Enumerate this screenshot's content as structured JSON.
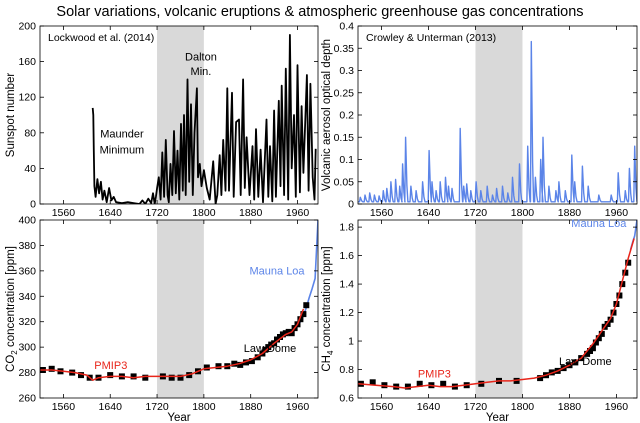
{
  "figure": {
    "title": "Solar variations, volcanic eruptions & atmospheric greenhouse gas concentrations"
  },
  "colors": {
    "sunspot": "#000000",
    "aerosol": "#5b84e8",
    "pmip3": "#e8251a",
    "mauna_loa": "#5b84e8",
    "law_dome_markers": "#000000",
    "shade": "#d9d9d9"
  },
  "chart_data": [
    {
      "id": "sunspots",
      "type": "line",
      "annotation": "Lockwood et al. (2014)",
      "xlabel": "",
      "ylabel": "Sunspot number",
      "xlim": [
        1520,
        1995
      ],
      "ylim": [
        0,
        200
      ],
      "xticks": [
        1560,
        1640,
        1720,
        1800,
        1880,
        1960
      ],
      "yticks": [
        0,
        40,
        80,
        120,
        160,
        200
      ],
      "shaded_period": [
        1720,
        1800
      ],
      "notes": [
        {
          "text": "Maunder",
          "x": 1660,
          "y": 75
        },
        {
          "text": "Minimum",
          "x": 1660,
          "y": 57
        },
        {
          "text": "Dalton",
          "x": 1795,
          "y": 161
        },
        {
          "text": "Min.",
          "x": 1795,
          "y": 145
        }
      ],
      "series": [
        {
          "name": "",
          "x": [
            1610,
            1611,
            1612,
            1613,
            1615,
            1618,
            1621,
            1624,
            1627,
            1630,
            1634,
            1638,
            1642,
            1646,
            1650,
            1660,
            1670,
            1680,
            1690,
            1695,
            1700,
            1705,
            1710,
            1713,
            1716,
            1718,
            1720,
            1723,
            1726,
            1729,
            1732,
            1735,
            1738,
            1740,
            1743,
            1746,
            1749,
            1752,
            1755,
            1758,
            1761,
            1764,
            1766,
            1769,
            1772,
            1775,
            1778,
            1781,
            1784,
            1788,
            1790,
            1793,
            1796,
            1800,
            1805,
            1810,
            1816,
            1820,
            1823,
            1827,
            1830,
            1833,
            1837,
            1840,
            1843,
            1848,
            1851,
            1855,
            1860,
            1863,
            1867,
            1870,
            1873,
            1878,
            1883,
            1886,
            1889,
            1893,
            1897,
            1901,
            1907,
            1910,
            1913,
            1917,
            1920,
            1923,
            1928,
            1931,
            1933,
            1937,
            1940,
            1944,
            1947,
            1950,
            1954,
            1957,
            1960,
            1964,
            1967,
            1970,
            1976,
            1979,
            1982,
            1986,
            1989,
            1991
          ],
          "y": [
            108,
            100,
            60,
            20,
            8,
            28,
            12,
            25,
            5,
            15,
            2,
            18,
            4,
            8,
            2,
            1,
            2,
            1,
            0,
            4,
            0,
            6,
            1,
            12,
            0,
            8,
            18,
            30,
            5,
            58,
            8,
            72,
            10,
            2,
            45,
            10,
            82,
            12,
            60,
            5,
            90,
            15,
            100,
            10,
            140,
            25,
            112,
            10,
            80,
            130,
            30,
            45,
            20,
            38,
            18,
            5,
            48,
            0,
            10,
            55,
            10,
            72,
            15,
            130,
            15,
            125,
            8,
            92,
            95,
            10,
            140,
            18,
            75,
            10,
            65,
            5,
            84,
            8,
            61,
            2,
            95,
            8,
            65,
            3,
            105,
            8,
            116,
            20,
            133,
            10,
            152,
            5,
            190,
            40,
            100,
            8,
            156,
            13,
            110,
            35,
            145,
            15,
            135,
            30,
            5,
            62
          ]
        }
      ]
    },
    {
      "id": "aerosols",
      "type": "line",
      "annotation": "Crowley & Unterman (2013)",
      "xlabel": "",
      "ylabel": "Volcanic aerosol optical depth",
      "xlim": [
        1520,
        1995
      ],
      "ylim": [
        0,
        0.4
      ],
      "xticks": [
        1560,
        1640,
        1720,
        1800,
        1880,
        1960
      ],
      "yticks": [
        0,
        0.05,
        0.1,
        0.15,
        0.2,
        0.25,
        0.3,
        0.35,
        0.4
      ],
      "ytick_labels": [
        "0",
        "0.05",
        "0.1",
        "0.15",
        "0.2",
        "0.25",
        "0.3",
        "0.35",
        "0.4"
      ],
      "shaded_period": [
        1720,
        1800
      ],
      "series": [
        {
          "name": "",
          "baseline": 0.005,
          "peaks": [
            {
              "x": 1524,
              "y": 0.015
            },
            {
              "x": 1532,
              "y": 0.02
            },
            {
              "x": 1540,
              "y": 0.025
            },
            {
              "x": 1548,
              "y": 0.02
            },
            {
              "x": 1556,
              "y": 0.018
            },
            {
              "x": 1563,
              "y": 0.03
            },
            {
              "x": 1569,
              "y": 0.035
            },
            {
              "x": 1576,
              "y": 0.05
            },
            {
              "x": 1584,
              "y": 0.055
            },
            {
              "x": 1591,
              "y": 0.04
            },
            {
              "x": 1596,
              "y": 0.09
            },
            {
              "x": 1601,
              "y": 0.15
            },
            {
              "x": 1610,
              "y": 0.04
            },
            {
              "x": 1619,
              "y": 0.03
            },
            {
              "x": 1630,
              "y": 0.05
            },
            {
              "x": 1641,
              "y": 0.12
            },
            {
              "x": 1646,
              "y": 0.05
            },
            {
              "x": 1653,
              "y": 0.03
            },
            {
              "x": 1660,
              "y": 0.05
            },
            {
              "x": 1669,
              "y": 0.06
            },
            {
              "x": 1674,
              "y": 0.04
            },
            {
              "x": 1680,
              "y": 0.035
            },
            {
              "x": 1694,
              "y": 0.17
            },
            {
              "x": 1700,
              "y": 0.04
            },
            {
              "x": 1705,
              "y": 0.045
            },
            {
              "x": 1712,
              "y": 0.03
            },
            {
              "x": 1721,
              "y": 0.05
            },
            {
              "x": 1729,
              "y": 0.03
            },
            {
              "x": 1740,
              "y": 0.04
            },
            {
              "x": 1749,
              "y": 0.02
            },
            {
              "x": 1756,
              "y": 0.035
            },
            {
              "x": 1766,
              "y": 0.04
            },
            {
              "x": 1775,
              "y": 0.025
            },
            {
              "x": 1783,
              "y": 0.06
            },
            {
              "x": 1795,
              "y": 0.09
            },
            {
              "x": 1809,
              "y": 0.13
            },
            {
              "x": 1815,
              "y": 0.365
            },
            {
              "x": 1822,
              "y": 0.06
            },
            {
              "x": 1831,
              "y": 0.1
            },
            {
              "x": 1835,
              "y": 0.15
            },
            {
              "x": 1845,
              "y": 0.04
            },
            {
              "x": 1857,
              "y": 0.03
            },
            {
              "x": 1862,
              "y": 0.05
            },
            {
              "x": 1873,
              "y": 0.03
            },
            {
              "x": 1884,
              "y": 0.11
            },
            {
              "x": 1889,
              "y": 0.05
            },
            {
              "x": 1902,
              "y": 0.085
            },
            {
              "x": 1912,
              "y": 0.04
            },
            {
              "x": 1930,
              "y": 0.02
            },
            {
              "x": 1951,
              "y": 0.02
            },
            {
              "x": 1963,
              "y": 0.07
            },
            {
              "x": 1975,
              "y": 0.03
            },
            {
              "x": 1982,
              "y": 0.08
            },
            {
              "x": 1991,
              "y": 0.13
            }
          ]
        }
      ]
    },
    {
      "id": "co2",
      "type": "line",
      "xlabel": "Year",
      "ylabel": "CO2 concentration  [ppm]",
      "ylabel_main": "CO",
      "ylabel_sub": "2",
      "ylabel_rest": " concentration  [ppm]",
      "xlim": [
        1520,
        1995
      ],
      "ylim": [
        260,
        400
      ],
      "xticks": [
        1560,
        1640,
        1720,
        1800,
        1880,
        1960
      ],
      "yticks": [
        260,
        280,
        300,
        320,
        340,
        360,
        380,
        400
      ],
      "shaded_period": [
        1720,
        1800
      ],
      "labels": [
        {
          "text": "Mauna Loa",
          "x": 1925,
          "y": 357,
          "color": "#5b84e8"
        },
        {
          "text": "PMIP3",
          "x": 1641,
          "y": 283,
          "color": "#e8251a"
        },
        {
          "text": "Law Dome",
          "x": 1913,
          "y": 296,
          "color": "#000000"
        }
      ],
      "series": [
        {
          "name": "Mauna Loa",
          "x": [
            1958,
            1965,
            1970,
            1975,
            1980,
            1985,
            1990,
            1995
          ],
          "y": [
            315,
            320,
            325,
            331,
            339,
            346,
            354,
            400
          ]
        },
        {
          "name": "PMIP3",
          "x": [
            1520,
            1540,
            1560,
            1580,
            1600,
            1610,
            1620,
            1640,
            1660,
            1680,
            1700,
            1720,
            1740,
            1760,
            1780,
            1800,
            1820,
            1840,
            1860,
            1880,
            1900,
            1920,
            1940,
            1950,
            1960,
            1970
          ],
          "y": [
            282,
            282,
            281,
            280,
            278,
            274,
            276,
            277,
            277,
            276,
            277,
            277,
            277,
            277,
            279,
            283,
            284,
            285,
            287,
            290,
            295,
            303,
            310,
            312,
            318,
            330
          ]
        },
        {
          "name": "Law Dome",
          "x": [
            1525,
            1540,
            1555,
            1575,
            1590,
            1605,
            1620,
            1640,
            1660,
            1680,
            1700,
            1730,
            1745,
            1760,
            1775,
            1790,
            1805,
            1825,
            1840,
            1852,
            1862,
            1872,
            1882,
            1892,
            1900,
            1905,
            1910,
            1915,
            1920,
            1925,
            1930,
            1935,
            1940,
            1945,
            1950,
            1955,
            1960,
            1965,
            1970,
            1975
          ],
          "y": [
            282,
            283,
            281,
            280,
            278,
            276,
            276,
            278,
            277,
            277,
            276,
            277,
            276,
            276,
            278,
            281,
            284,
            285,
            285,
            287,
            286,
            288,
            289,
            292,
            295,
            298,
            300,
            302,
            303,
            306,
            308,
            310,
            311,
            312,
            311,
            315,
            318,
            322,
            326,
            333
          ]
        }
      ]
    },
    {
      "id": "ch4",
      "type": "line",
      "xlabel": "Year",
      "ylabel": "CH4 concentration  [ppm]",
      "ylabel_main": "CH",
      "ylabel_sub": "4",
      "ylabel_rest": " concentration  [ppm]",
      "xlim": [
        1520,
        1995
      ],
      "ylim": [
        0.6,
        1.85
      ],
      "xticks": [
        1560,
        1640,
        1720,
        1800,
        1880,
        1960
      ],
      "yticks": [
        0.6,
        0.8,
        1.0,
        1.2,
        1.4,
        1.6,
        1.8
      ],
      "ytick_labels": [
        "0.6",
        "0.8",
        "1",
        "1.2",
        "1.4",
        "1.6",
        "1.8"
      ],
      "shaded_period": [
        1720,
        1800
      ],
      "labels": [
        {
          "text": "Mauna Loa",
          "x": 1930,
          "y": 1.8,
          "color": "#5b84e8"
        },
        {
          "text": "PMIP3",
          "x": 1650,
          "y": 0.745,
          "color": "#e8251a"
        },
        {
          "text": "Law Dome",
          "x": 1907,
          "y": 0.83,
          "color": "#000000"
        }
      ],
      "series": [
        {
          "name": "Mauna Loa",
          "x": [
            1984,
            1988,
            1991,
            1995
          ],
          "y": [
            1.64,
            1.7,
            1.74,
            1.85
          ]
        },
        {
          "name": "PMIP3",
          "x": [
            1520,
            1550,
            1580,
            1600,
            1620,
            1640,
            1660,
            1680,
            1700,
            1720,
            1740,
            1760,
            1780,
            1800,
            1820,
            1840,
            1860,
            1880,
            1900,
            1920,
            1940,
            1950,
            1960,
            1970,
            1980,
            1990
          ],
          "y": [
            0.7,
            0.69,
            0.68,
            0.67,
            0.68,
            0.69,
            0.68,
            0.68,
            0.69,
            0.7,
            0.71,
            0.72,
            0.72,
            0.73,
            0.74,
            0.76,
            0.79,
            0.83,
            0.88,
            0.98,
            1.1,
            1.16,
            1.26,
            1.42,
            1.58,
            1.72
          ]
        },
        {
          "name": "Law Dome",
          "x": [
            1525,
            1545,
            1565,
            1585,
            1605,
            1625,
            1645,
            1665,
            1685,
            1705,
            1730,
            1760,
            1790,
            1830,
            1840,
            1850,
            1860,
            1870,
            1880,
            1890,
            1900,
            1910,
            1915,
            1920,
            1925,
            1930,
            1935,
            1940,
            1945,
            1950,
            1955,
            1960,
            1965,
            1970,
            1975,
            1980
          ],
          "y": [
            0.7,
            0.71,
            0.69,
            0.68,
            0.68,
            0.7,
            0.69,
            0.7,
            0.68,
            0.69,
            0.7,
            0.72,
            0.72,
            0.74,
            0.76,
            0.78,
            0.79,
            0.81,
            0.83,
            0.85,
            0.88,
            0.91,
            0.93,
            0.95,
            0.99,
            1.02,
            1.05,
            1.1,
            1.12,
            1.15,
            1.2,
            1.26,
            1.32,
            1.4,
            1.48,
            1.55
          ]
        }
      ]
    }
  ]
}
